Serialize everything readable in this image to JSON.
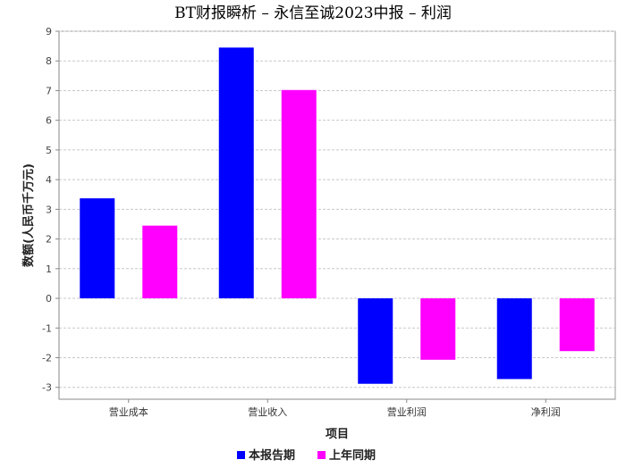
{
  "chart_data": {
    "type": "bar",
    "title": "BT财报瞬析 – 永信至诚2023中报 – 利润",
    "xlabel": "项目",
    "ylabel": "数额(人民币千万元)",
    "categories": [
      "营业成本",
      "营业收入",
      "营业利润",
      "净利润"
    ],
    "series": [
      {
        "name": "本报告期",
        "color": "#0000ff",
        "values": [
          3.37,
          8.45,
          -2.88,
          -2.72
        ]
      },
      {
        "name": "上年同期",
        "color": "#ff00ff",
        "values": [
          2.45,
          7.02,
          -2.07,
          -1.78
        ]
      }
    ],
    "ylim": [
      -3.4,
      9
    ],
    "yticks": [
      -3,
      -2,
      -1,
      0,
      1,
      2,
      3,
      4,
      5,
      6,
      7,
      8,
      9
    ],
    "grid": true,
    "legend": "bottom"
  }
}
